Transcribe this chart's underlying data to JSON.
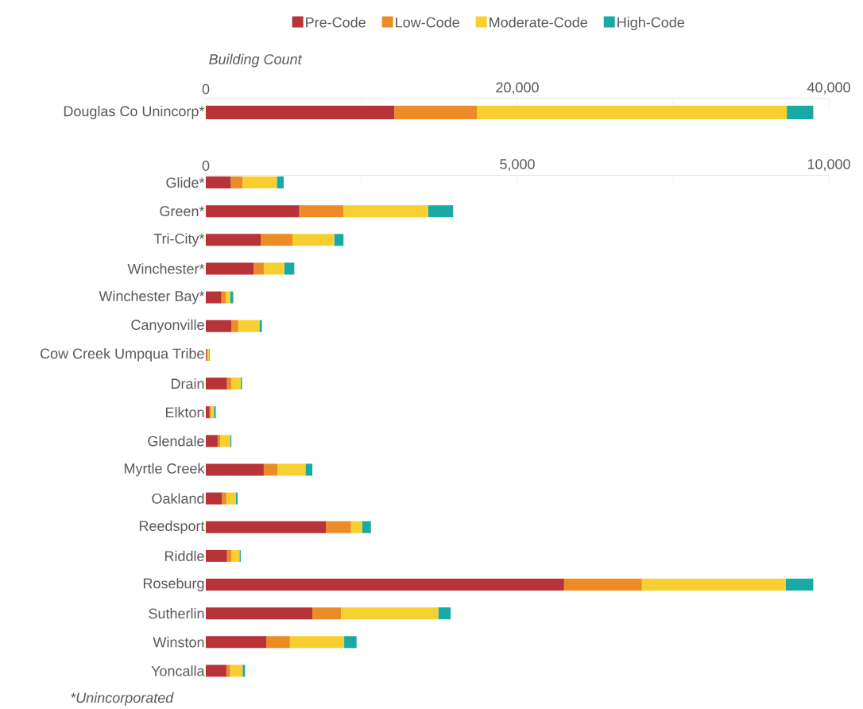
{
  "chart_data": [
    {
      "type": "bar",
      "orientation": "horizontal",
      "stacked": true,
      "xlabel": "Building Count",
      "legend": "top",
      "categories": [
        "Douglas Co Unincorp*"
      ],
      "xlim": [
        0,
        40000
      ],
      "xticks": [
        0,
        {
          "value": 10000,
          "label": null
        },
        {
          "value": 20000,
          "label": "20,000"
        },
        {
          "value": 30000,
          "label": null
        },
        {
          "value": 40000,
          "label": "40,000"
        }
      ],
      "series": [
        {
          "name": "Pre-Code",
          "color": "#b83338",
          "values": [
            12100
          ]
        },
        {
          "name": "Low-Code",
          "color": "#ed8b26",
          "values": [
            5300
          ]
        },
        {
          "name": "Moderate-Code",
          "color": "#f8cf31",
          "values": [
            19900
          ]
        },
        {
          "name": "High-Code",
          "color": "#19aaa6",
          "values": [
            1700
          ]
        }
      ]
    },
    {
      "type": "bar",
      "orientation": "horizontal",
      "stacked": true,
      "annotations": [
        "*Unincorporated"
      ],
      "categories": [
        "Glide*",
        "Green*",
        "Tri-City*",
        "Winchester*",
        "Winchester Bay*",
        "Canyonville",
        "Cow Creek Umpqua Tribe",
        "Drain",
        "Elkton",
        "Glendale",
        "Myrtle Creek",
        "Oakland",
        "Reedsport",
        "Riddle",
        "Roseburg",
        "Sutherlin",
        "Winston",
        "Yoncalla"
      ],
      "xlim": [
        0,
        10000
      ],
      "xticks": [
        0,
        {
          "value": 2500,
          "label": null
        },
        {
          "value": 5000,
          "label": "5,000"
        },
        {
          "value": 7500,
          "label": null
        },
        {
          "value": 10000,
          "label": "10,000"
        }
      ],
      "series": [
        {
          "color": "#b83338",
          "values": [
            400,
            1500,
            880,
            770,
            250,
            410,
            10,
            340,
            60,
            190,
            930,
            260,
            1930,
            340,
            5750,
            1710,
            970,
            330
          ]
        },
        {
          "color": "#ed8b26",
          "values": [
            190,
            710,
            510,
            160,
            70,
            110,
            20,
            70,
            20,
            40,
            220,
            70,
            400,
            70,
            1250,
            460,
            380,
            60
          ]
        },
        {
          "color": "#f8cf31",
          "values": [
            550,
            1360,
            670,
            330,
            70,
            340,
            20,
            150,
            50,
            160,
            450,
            150,
            180,
            130,
            2310,
            1560,
            870,
            200
          ]
        },
        {
          "color": "#19aaa6",
          "values": [
            110,
            400,
            150,
            160,
            50,
            40,
            10,
            20,
            30,
            20,
            110,
            30,
            140,
            20,
            440,
            200,
            200,
            40
          ]
        }
      ]
    }
  ]
}
